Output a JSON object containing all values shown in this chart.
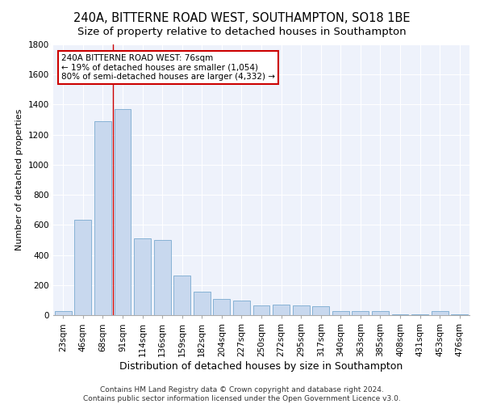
{
  "title": "240A, BITTERNE ROAD WEST, SOUTHAMPTON, SO18 1BE",
  "subtitle": "Size of property relative to detached houses in Southampton",
  "xlabel": "Distribution of detached houses by size in Southampton",
  "ylabel": "Number of detached properties",
  "categories": [
    "23sqm",
    "46sqm",
    "68sqm",
    "91sqm",
    "114sqm",
    "136sqm",
    "159sqm",
    "182sqm",
    "204sqm",
    "227sqm",
    "250sqm",
    "272sqm",
    "295sqm",
    "317sqm",
    "340sqm",
    "363sqm",
    "385sqm",
    "408sqm",
    "431sqm",
    "453sqm",
    "476sqm"
  ],
  "values": [
    28,
    635,
    1290,
    1370,
    510,
    500,
    265,
    155,
    110,
    95,
    65,
    70,
    65,
    60,
    28,
    26,
    26,
    5,
    5,
    26,
    5
  ],
  "bar_color": "#c8d8ee",
  "bar_edge_color": "#7aaad0",
  "vline_x_idx": 2.5,
  "vline_color": "#cc0000",
  "annotation_line1": "240A BITTERNE ROAD WEST: 76sqm",
  "annotation_line2": "← 19% of detached houses are smaller (1,054)",
  "annotation_line3": "80% of semi-detached houses are larger (4,332) →",
  "annotation_box_facecolor": "#ffffff",
  "annotation_box_edgecolor": "#cc0000",
  "footer_line1": "Contains HM Land Registry data © Crown copyright and database right 2024.",
  "footer_line2": "Contains public sector information licensed under the Open Government Licence v3.0.",
  "fig_facecolor": "#ffffff",
  "ax_facecolor": "#eef2fb",
  "grid_color": "#ffffff",
  "ylim_max": 1800,
  "yticks": [
    0,
    200,
    400,
    600,
    800,
    1000,
    1200,
    1400,
    1600,
    1800
  ],
  "title_fontsize": 10.5,
  "subtitle_fontsize": 9.5,
  "xlabel_fontsize": 9,
  "ylabel_fontsize": 8,
  "tick_fontsize": 7.5,
  "annotation_fontsize": 7.5,
  "footer_fontsize": 6.5
}
